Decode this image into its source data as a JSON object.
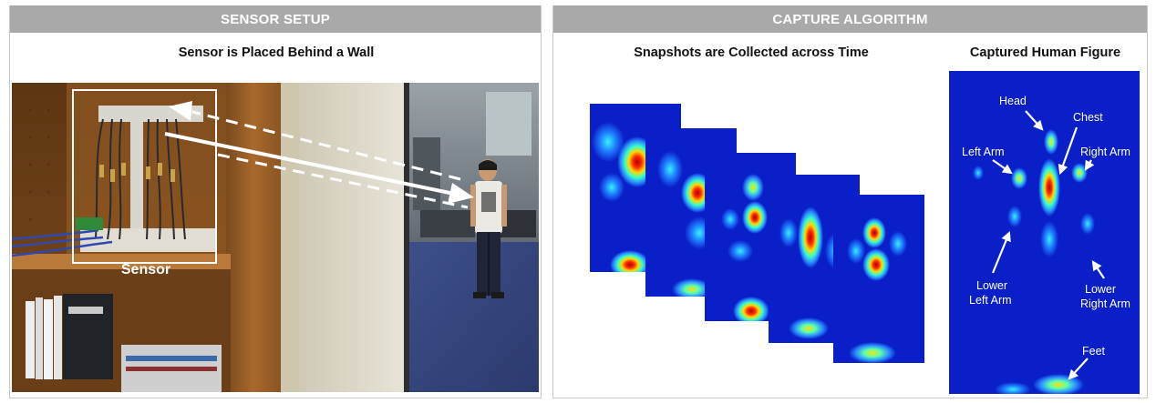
{
  "left_panel": {
    "header": "SENSOR SETUP",
    "subtitle": "Sensor is Placed Behind a Wall",
    "sensor_label": "Sensor"
  },
  "right_panel": {
    "header": "CAPTURE ALGORITHM",
    "snapshots_title": "Snapshots are Collected across Time",
    "figure_title": "Captured Human Figure",
    "body_parts": {
      "head": "Head",
      "chest": "Chest",
      "left_arm": "Left Arm",
      "right_arm": "Right Arm",
      "lower_left_arm_1": "Lower",
      "lower_left_arm_2": "Left Arm",
      "lower_right_arm_1": "Lower",
      "lower_right_arm_2": "Right Arm",
      "feet": "Feet"
    }
  },
  "colors": {
    "header_bar": "#a9a9a9",
    "heatmap_background": "#0a1fc8",
    "arrow": "#ffffff"
  },
  "icons": [
    "solid-arrow",
    "dashed-arrow"
  ]
}
